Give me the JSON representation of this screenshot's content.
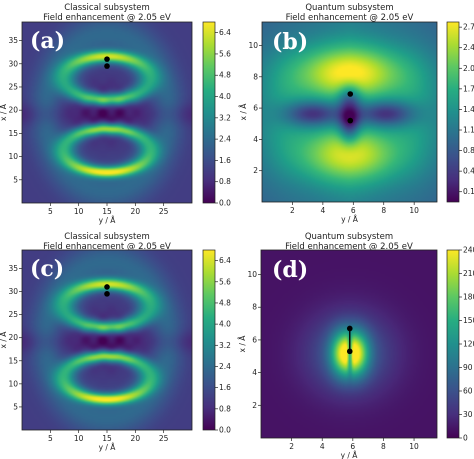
{
  "chart_data": [
    {
      "panel_label": "(a)",
      "type": "heatmap",
      "title": "Classical subsystem",
      "subtitle": "Field enhancement @ 2.05 eV",
      "xlabel": "y / Å",
      "ylabel": "x / Å",
      "xlim": [
        0,
        30
      ],
      "ylim": [
        0,
        39
      ],
      "xticks": [
        "5",
        "10",
        "15",
        "20",
        "25"
      ],
      "xtick_values": [
        5,
        10,
        15,
        20,
        25
      ],
      "yticks": [
        "5",
        "10",
        "15",
        "20",
        "25",
        "30",
        "35"
      ],
      "ytick_values": [
        5,
        10,
        15,
        20,
        25,
        30,
        35
      ],
      "colorbar_ticks": [
        "0.0",
        "0.8",
        "1.6",
        "2.4",
        "3.2",
        "4.0",
        "4.8",
        "5.6",
        "6.4"
      ],
      "colorbar_range": [
        0,
        6.8
      ],
      "atoms": [
        {
          "y": 15,
          "x": 31
        },
        {
          "y": 15,
          "x": 29.5
        }
      ],
      "colormap": "viridis",
      "pattern": "classical"
    },
    {
      "panel_label": "(b)",
      "type": "heatmap",
      "title": "Quantum subsystem",
      "subtitle": "Field enhancement @ 2.05 eV",
      "xlabel": "y / Å",
      "ylabel": "x / Å",
      "xlim": [
        0,
        11.5
      ],
      "ylim": [
        0,
        11.5
      ],
      "xticks": [
        "2",
        "4",
        "6",
        "8",
        "10"
      ],
      "xtick_values": [
        2,
        4,
        6,
        8,
        10
      ],
      "yticks": [
        "2",
        "4",
        "6",
        "8",
        "10"
      ],
      "ytick_values": [
        2,
        4,
        6,
        8,
        10
      ],
      "colorbar_ticks": [
        "0.16",
        "0.48",
        "0.80",
        "1.12",
        "1.44",
        "1.76",
        "2.08",
        "2.40",
        "2.72"
      ],
      "colorbar_range": [
        0.0,
        2.8
      ],
      "atoms": [
        {
          "y": 5.8,
          "x": 6.9
        },
        {
          "y": 5.8,
          "x": 5.2
        }
      ],
      "colormap": "viridis",
      "pattern": "quantum_low"
    },
    {
      "panel_label": "(c)",
      "type": "heatmap",
      "title": "Classical subsystem",
      "subtitle": "Field enhancement @ 2.05 eV",
      "xlabel": "y / Å",
      "ylabel": "x / Å",
      "xlim": [
        0,
        30
      ],
      "ylim": [
        0,
        39
      ],
      "xticks": [
        "5",
        "10",
        "15",
        "20",
        "25"
      ],
      "xtick_values": [
        5,
        10,
        15,
        20,
        25
      ],
      "yticks": [
        "5",
        "10",
        "15",
        "20",
        "25",
        "30",
        "35"
      ],
      "ytick_values": [
        5,
        10,
        15,
        20,
        25,
        30,
        35
      ],
      "colorbar_ticks": [
        "0.0",
        "0.8",
        "1.6",
        "2.4",
        "3.2",
        "4.0",
        "4.8",
        "5.6",
        "6.4"
      ],
      "colorbar_range": [
        0,
        6.8
      ],
      "atoms": [
        {
          "y": 15,
          "x": 31
        },
        {
          "y": 15,
          "x": 29.5
        }
      ],
      "colormap": "viridis",
      "pattern": "classical"
    },
    {
      "panel_label": "(d)",
      "type": "heatmap",
      "title": "Quantum subsystem",
      "subtitle": "Field enhancement @ 2.05 eV",
      "xlabel": "y / Å",
      "ylabel": "x / Å",
      "xlim": [
        0,
        11.5
      ],
      "ylim": [
        0,
        11.5
      ],
      "xticks": [
        "2",
        "4",
        "6",
        "8",
        "10"
      ],
      "xtick_values": [
        2,
        4,
        6,
        8,
        10
      ],
      "yticks": [
        "2",
        "4",
        "6",
        "8",
        "10"
      ],
      "ytick_values": [
        2,
        4,
        6,
        8,
        10
      ],
      "colorbar_ticks": [
        "0",
        "30",
        "60",
        "90",
        "120",
        "150",
        "180",
        "210",
        "240"
      ],
      "colorbar_range": [
        0,
        240
      ],
      "atoms": [
        {
          "y": 5.8,
          "x": 6.7
        },
        {
          "y": 5.8,
          "x": 5.3
        }
      ],
      "colormap": "viridis",
      "pattern": "quantum_high"
    }
  ]
}
